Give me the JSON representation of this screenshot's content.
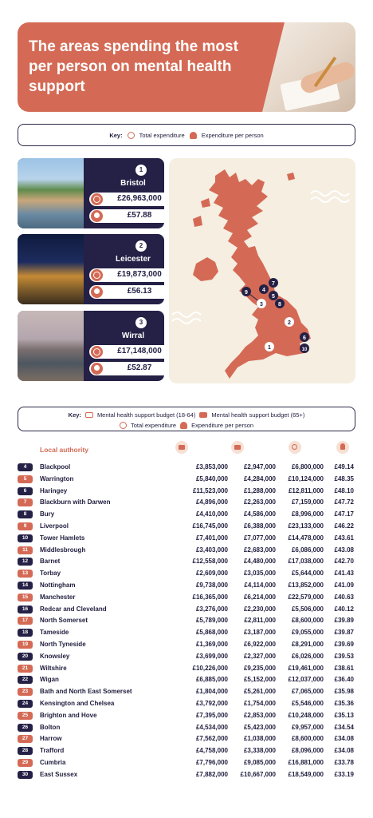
{
  "title": "The areas spending the most per person on mental health support",
  "key_top": {
    "label": "Key:",
    "total": "Total expenditure",
    "per_person": "Expenditure per person"
  },
  "top3": [
    {
      "rank": "1",
      "name": "Bristol",
      "total": "£26,963,000",
      "per_person": "£57.88"
    },
    {
      "rank": "2",
      "name": "Leicester",
      "total": "£19,873,000",
      "per_person": "£56.13"
    },
    {
      "rank": "3",
      "name": "Wirral",
      "total": "£17,148,000",
      "per_person": "£52.87"
    }
  ],
  "map_markers": [
    "1",
    "2",
    "3",
    "4",
    "5",
    "6",
    "7",
    "8",
    "9",
    "10"
  ],
  "key_table": {
    "label": "Key:",
    "budget_18_64": "Mental health support budget (18-64)",
    "budget_65": "Mental health support budget (65+)",
    "total": "Total expenditure",
    "per_person": "Expenditure per person"
  },
  "table_header": "Local authority",
  "colors": {
    "coral": "#d46a55",
    "navy": "#242046",
    "map_bg": "#f5eee1"
  },
  "chart_data": {
    "type": "table",
    "columns": [
      "Local authority",
      "Mental health support budget (18-64)",
      "Mental health support budget (65+)",
      "Total expenditure",
      "Expenditure per person"
    ],
    "rows": [
      {
        "rank": "4",
        "name": "Blackpool",
        "b1864": "£3,853,000",
        "b65": "£2,947,000",
        "total": "£6,800,000",
        "pp": "£49.14"
      },
      {
        "rank": "5",
        "name": "Warrington",
        "b1864": "£5,840,000",
        "b65": "£4,284,000",
        "total": "£10,124,000",
        "pp": "£48.35"
      },
      {
        "rank": "6",
        "name": "Haringey",
        "b1864": "£11,523,000",
        "b65": "£1,288,000",
        "total": "£12,811,000",
        "pp": "£48.10"
      },
      {
        "rank": "7",
        "name": "Blackburn with Darwen",
        "b1864": "£4,896,000",
        "b65": "£2,263,000",
        "total": "£7,159,000",
        "pp": "£47.72"
      },
      {
        "rank": "8",
        "name": "Bury",
        "b1864": "£4,410,000",
        "b65": "£4,586,000",
        "total": "£8,996,000",
        "pp": "£47.17"
      },
      {
        "rank": "9",
        "name": "Liverpool",
        "b1864": "£16,745,000",
        "b65": "£6,388,000",
        "total": "£23,133,000",
        "pp": "£46.22"
      },
      {
        "rank": "10",
        "name": "Tower Hamlets",
        "b1864": "£7,401,000",
        "b65": "£7,077,000",
        "total": "£14,478,000",
        "pp": "£43.61"
      },
      {
        "rank": "11",
        "name": "Middlesbrough",
        "b1864": "£3,403,000",
        "b65": "£2,683,000",
        "total": "£6,086,000",
        "pp": "£43.08"
      },
      {
        "rank": "12",
        "name": "Barnet",
        "b1864": "£12,558,000",
        "b65": "£4,480,000",
        "total": "£17,038,000",
        "pp": "£42.70"
      },
      {
        "rank": "13",
        "name": "Torbay",
        "b1864": "£2,609,000",
        "b65": "£3,035,000",
        "total": "£5,644,000",
        "pp": "£41.43"
      },
      {
        "rank": "14",
        "name": "Nottingham",
        "b1864": "£9,738,000",
        "b65": "£4,114,000",
        "total": "£13,852,000",
        "pp": "£41.09"
      },
      {
        "rank": "15",
        "name": "Manchester",
        "b1864": "£16,365,000",
        "b65": "£6,214,000",
        "total": "£22,579,000",
        "pp": "£40.63"
      },
      {
        "rank": "16",
        "name": "Redcar and Cleveland",
        "b1864": "£3,276,000",
        "b65": "£2,230,000",
        "total": "£5,506,000",
        "pp": "£40.12"
      },
      {
        "rank": "17",
        "name": "North Somerset",
        "b1864": "£5,789,000",
        "b65": "£2,811,000",
        "total": "£8,600,000",
        "pp": "£39.89"
      },
      {
        "rank": "18",
        "name": "Tameside",
        "b1864": "£5,868,000",
        "b65": "£3,187,000",
        "total": "£9,055,000",
        "pp": "£39.87"
      },
      {
        "rank": "19",
        "name": "North Tyneside",
        "b1864": "£1,369,000",
        "b65": "£6,922,000",
        "total": "£8,291,000",
        "pp": "£39.69"
      },
      {
        "rank": "20",
        "name": "Knowsley",
        "b1864": "£3,699,000",
        "b65": "£2,327,000",
        "total": "£6,026,000",
        "pp": "£39.53"
      },
      {
        "rank": "21",
        "name": "Wiltshire",
        "b1864": "£10,226,000",
        "b65": "£9,235,000",
        "total": "£19,461,000",
        "pp": "£38.61"
      },
      {
        "rank": "22",
        "name": "Wigan",
        "b1864": "£6,885,000",
        "b65": "£5,152,000",
        "total": "£12,037,000",
        "pp": "£36.40"
      },
      {
        "rank": "23",
        "name": "Bath and North East Somerset",
        "b1864": "£1,804,000",
        "b65": "£5,261,000",
        "total": "£7,065,000",
        "pp": "£35.98"
      },
      {
        "rank": "24",
        "name": "Kensington and Chelsea",
        "b1864": "£3,792,000",
        "b65": "£1,754,000",
        "total": "£5,546,000",
        "pp": "£35.36"
      },
      {
        "rank": "25",
        "name": "Brighton and Hove",
        "b1864": "£7,395,000",
        "b65": "£2,853,000",
        "total": "£10,248,000",
        "pp": "£35.13"
      },
      {
        "rank": "26",
        "name": "Bolton",
        "b1864": "£4,534,000",
        "b65": "£5,423,000",
        "total": "£9,957,000",
        "pp": "£34.54"
      },
      {
        "rank": "27",
        "name": "Harrow",
        "b1864": "£7,562,000",
        "b65": "£1,038,000",
        "total": "£8,600,000",
        "pp": "£34.08"
      },
      {
        "rank": "28",
        "name": "Trafford",
        "b1864": "£4,758,000",
        "b65": "£3,338,000",
        "total": "£8,096,000",
        "pp": "£34.08"
      },
      {
        "rank": "29",
        "name": "Cumbria",
        "b1864": "£7,796,000",
        "b65": "£9,085,000",
        "total": "£16,881,000",
        "pp": "£33.78"
      },
      {
        "rank": "30",
        "name": "East Sussex",
        "b1864": "£7,882,000",
        "b65": "£10,667,000",
        "total": "£18,549,000",
        "pp": "£33.19"
      }
    ]
  }
}
